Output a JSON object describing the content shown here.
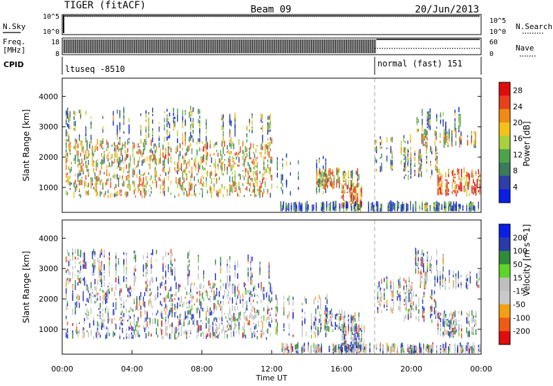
{
  "header": {
    "radar": "TIGER (fitACF)",
    "beam": "Beam 09",
    "date": "20/Jun/2013"
  },
  "nsky_panel": {
    "left_label": "N.Sky",
    "left_ticks": [
      "10^5",
      "10^0"
    ],
    "right_ticks": [
      "10^5",
      "10^0"
    ],
    "right_label": "N.Search"
  },
  "freq_panel": {
    "left_label_1": "Freq.",
    "left_label_2": "[MHz]",
    "left_ticks": [
      "18",
      "8"
    ],
    "right_ticks": [
      "60",
      "0"
    ],
    "right_label": "Nave"
  },
  "cpid_panel": {
    "label": "CPID",
    "mode_1": "ltuseq -8510",
    "mode_2": "normal (fast) 151"
  },
  "colors": {
    "power": [
      "#0b1ee6",
      "#2e3da8",
      "#3b7a5a",
      "#4fa24c",
      "#a7d23c",
      "#f4c21a",
      "#f08a14",
      "#e8401a",
      "#e00d0d"
    ],
    "velocity": [
      "#e00d0d",
      "#ef5a14",
      "#f4a015",
      "#c9c9c9",
      "#bfbfbf",
      "#5fd42a",
      "#2f8a3a",
      "#2a3aa8",
      "#0b1ee6"
    ]
  },
  "chart_data": [
    {
      "type": "heatmap",
      "title": "",
      "xlabel": "Time UT",
      "ylabel": "Slant Range [km]",
      "xlim": [
        "00:00",
        "24:00"
      ],
      "ylim": [
        180,
        4600
      ],
      "x_ticks": [
        "00:00",
        "04:00",
        "08:00",
        "12:00",
        "16:00",
        "20:00",
        "00:00"
      ],
      "y_ticks": [
        "1000",
        "2000",
        "3000",
        "4000"
      ],
      "colorbar": {
        "label": "Power [dB]",
        "ticks": [
          "4",
          "8",
          "12",
          "16",
          "20",
          "24",
          "28"
        ],
        "range": [
          0,
          30
        ]
      },
      "mode_change_time": "18:00"
    },
    {
      "type": "heatmap",
      "title": "",
      "xlabel": "Time UT",
      "ylabel": "Slant Range [km]",
      "xlim": [
        "00:00",
        "24:00"
      ],
      "ylim": [
        180,
        4600
      ],
      "x_ticks": [
        "00:00",
        "04:00",
        "08:00",
        "12:00",
        "16:00",
        "20:00",
        "00:00"
      ],
      "y_ticks": [
        "1000",
        "2000",
        "3000",
        "4000"
      ],
      "colorbar": {
        "label": "Velocity [m s^-1]",
        "ticks": [
          "200",
          "100",
          "50",
          "15",
          "-15",
          "-50",
          "-100",
          "-200"
        ]
      },
      "mode_change_time": "18:00"
    }
  ]
}
